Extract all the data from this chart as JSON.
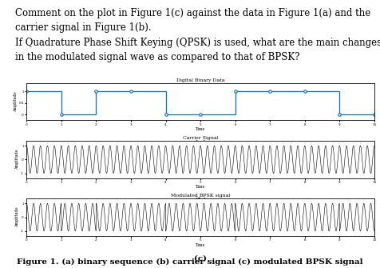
{
  "text_line1": "Comment on the plot in Figure 1(c) against the data in Figure 1(a) and the",
  "text_line2": "carrier signal in Figure 1(b).",
  "text_line3": "If Quadrature Phase Shift Keying (QPSK) is used, what are the main changes",
  "text_line4": "in the modulated signal wave as compared to that of BPSK?",
  "fig_caption": "Figure 1. (a) binary sequence (b) carrier signal (c) modulated BPSK signal",
  "binary_sequence": [
    1,
    0,
    1,
    1,
    0,
    0,
    1,
    1,
    1,
    0
  ],
  "num_bits": 10,
  "carrier_freq": 5,
  "title_a": "Digital Binary Data",
  "title_b": "Carrier Signal",
  "title_c": "Modulated BPSK signal",
  "xlabel": "Time",
  "ylabel_a": "Amplitude",
  "ylabel_b": "Amplitude",
  "ylabel_c": "Amplitude",
  "line_color_a": "#0070c0",
  "line_color_bc": "#000000",
  "bg_color": "#ffffff",
  "text_fontsize": 8.5,
  "caption_fontsize": 7.5
}
